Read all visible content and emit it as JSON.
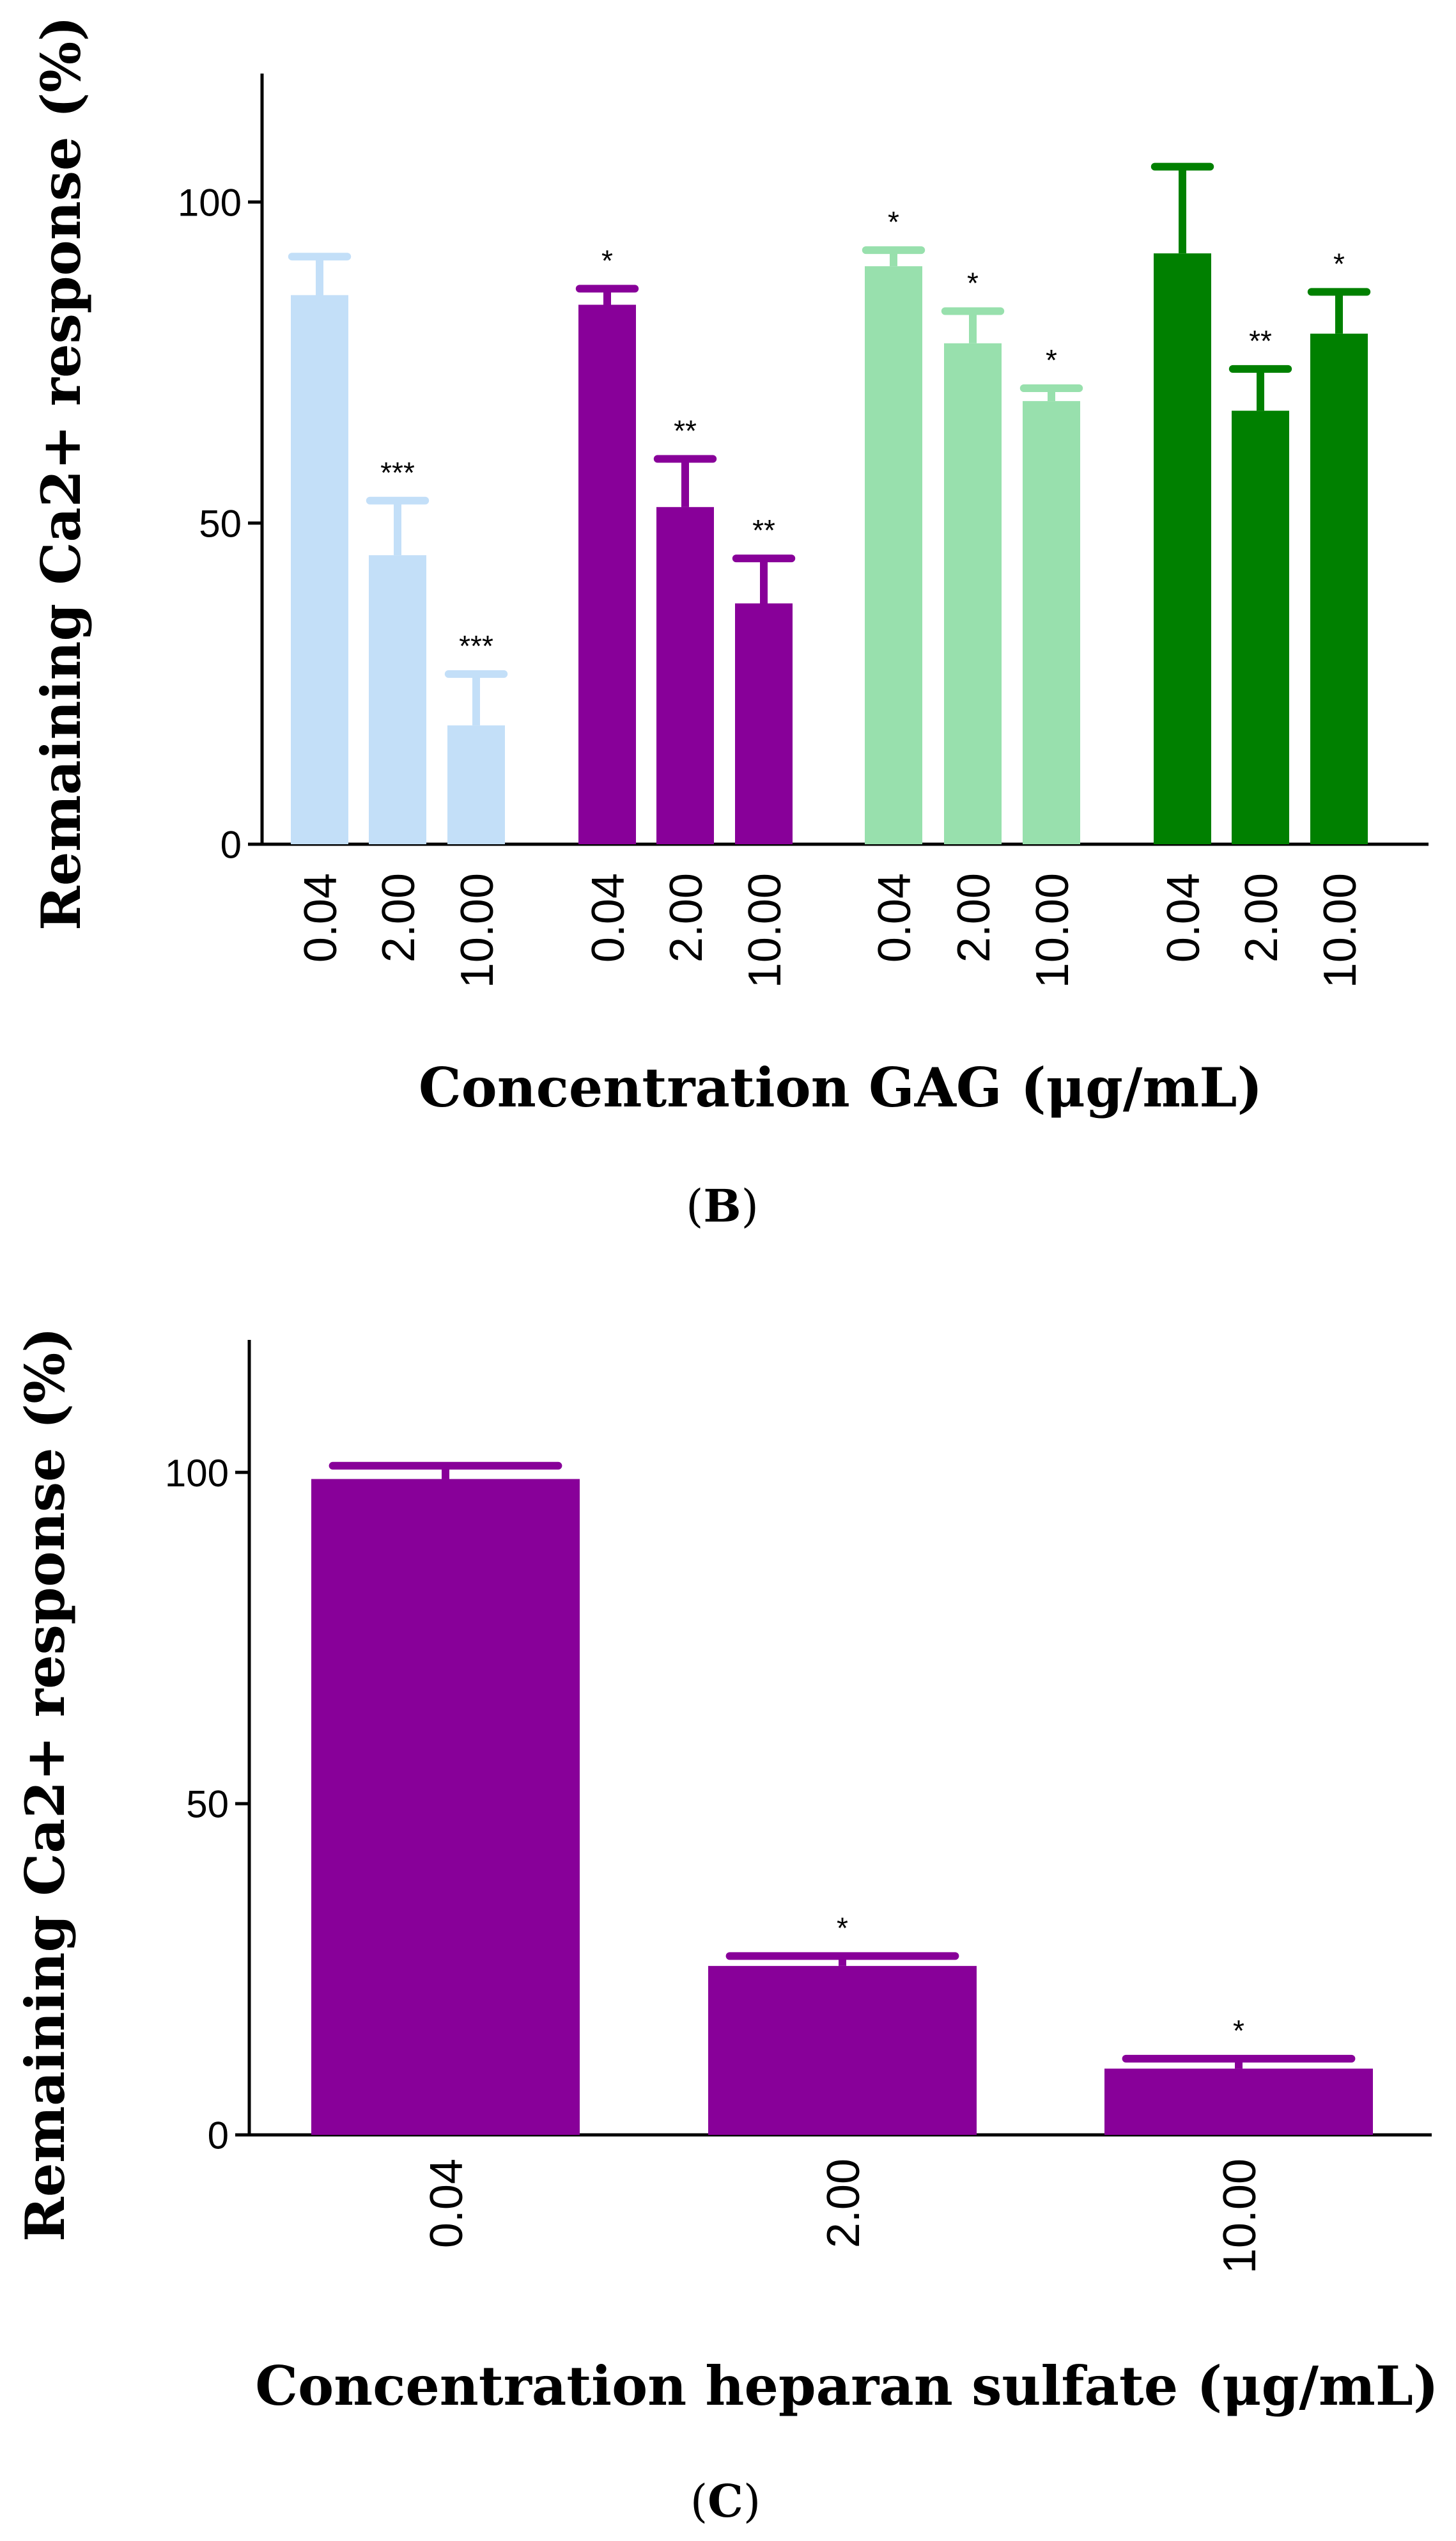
{
  "chart_data": [
    {
      "type": "bar",
      "panel_label_prefix": "(",
      "panel_label": "B",
      "panel_label_suffix": ")",
      "ylabel": "Remaining Ca2+ response (%)",
      "xlabel": "Concentration GAG (μg/mL)",
      "ylim": [
        0,
        120
      ],
      "yticks": [
        0,
        50,
        100
      ],
      "ytick_labels": [
        "0",
        "50",
        "100"
      ],
      "categories": [
        "0.04",
        "2.00",
        "10.00"
      ],
      "series": [
        {
          "color": "#c3dff8",
          "values": [
            85.5,
            45.0,
            18.5
          ],
          "errors": [
            6.0,
            8.5,
            8.0
          ],
          "significance": [
            "",
            "***",
            "***"
          ]
        },
        {
          "color": "#880099",
          "values": [
            84.0,
            52.5,
            37.5
          ],
          "errors": [
            2.5,
            7.5,
            7.0
          ],
          "significance": [
            "*",
            "**",
            "**"
          ]
        },
        {
          "color": "#98e0ad",
          "values": [
            90.0,
            78.0,
            69.0
          ],
          "errors": [
            2.5,
            5.0,
            2.0
          ],
          "significance": [
            "*",
            "*",
            "*"
          ]
        },
        {
          "color": "#008000",
          "values": [
            92.0,
            67.5,
            79.5
          ],
          "errors": [
            13.5,
            6.5,
            6.5
          ],
          "significance": [
            "",
            "**",
            "*"
          ]
        }
      ]
    },
    {
      "type": "bar",
      "panel_label_prefix": "(",
      "panel_label": "C",
      "panel_label_suffix": ")",
      "ylabel": "Remaining Ca2+ response (%)",
      "xlabel": "Concentration heparan sulfate (μg/mL)",
      "ylim": [
        0,
        120
      ],
      "yticks": [
        0,
        50,
        100
      ],
      "ytick_labels": [
        "0",
        "50",
        "100"
      ],
      "categories": [
        "0.04",
        "2.00",
        "10.00"
      ],
      "series": [
        {
          "color": "#880099",
          "values": [
            99.0,
            25.5,
            10.0
          ],
          "errors": [
            2.0,
            1.5,
            1.5
          ],
          "significance": [
            "",
            "*",
            "*"
          ]
        }
      ]
    }
  ]
}
